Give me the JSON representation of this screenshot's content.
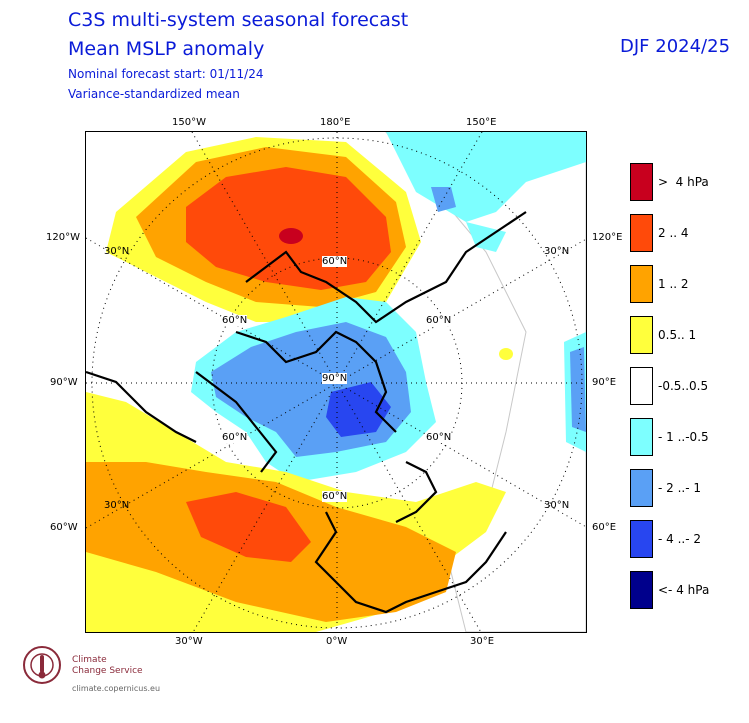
{
  "header": {
    "title_line1": "C3S multi-system seasonal forecast",
    "title_line2": "Mean MSLP anomaly",
    "subtitle_line1": "Nominal forecast start: 01/11/24",
    "subtitle_line2": "Variance-standardized mean",
    "season": "DJF 2024/25"
  },
  "map": {
    "projection": "polar stereographic (north)",
    "center": "North Pole",
    "longitude_labels_top": [
      "150°W",
      "180°E",
      "150°E"
    ],
    "longitude_labels_bottom": [
      "30°W",
      "0°W",
      "30°E"
    ],
    "longitude_labels_left": [
      "120°W",
      "90°W",
      "60°W"
    ],
    "longitude_labels_right": [
      "120°E",
      "90°E",
      "60°E"
    ],
    "latitude_labels": [
      "30°N",
      "60°N",
      "90°N"
    ],
    "inner_labels": {
      "n60_top": "60°N",
      "n90": "90°N",
      "n60_left_top": "60°N",
      "n60_right_top": "60°N",
      "n60_left_bot": "60°N",
      "n60_right_bot": "60°N",
      "n60_bottom": "60°N",
      "n30_tl": "30°N",
      "n30_tr": "30°N",
      "n30_bl": "30°N",
      "n30_br": "30°N"
    }
  },
  "legend": {
    "items": [
      {
        "label": ">  4 hPa",
        "color": "#c8001e"
      },
      {
        "label": "2 .. 4",
        "color": "#ff4a0a"
      },
      {
        "label": "1 .. 2",
        "color": "#ffa300"
      },
      {
        "label": "0.5.. 1",
        "color": "#ffff3c"
      },
      {
        "label": "-0.5..0.5",
        "color": "#ffffff"
      },
      {
        "label": "- 1 ..-0.5",
        "color": "#7dffff"
      },
      {
        "label": "- 2 ..- 1",
        "color": "#5aa0f5"
      },
      {
        "label": "- 4 ..- 2",
        "color": "#2846f0"
      },
      {
        "label": "<- 4 hPa",
        "color": "#00008c"
      }
    ]
  },
  "logo": {
    "line1": "Climate",
    "line2": "Change Service",
    "url": "climate.copernicus.eu"
  }
}
